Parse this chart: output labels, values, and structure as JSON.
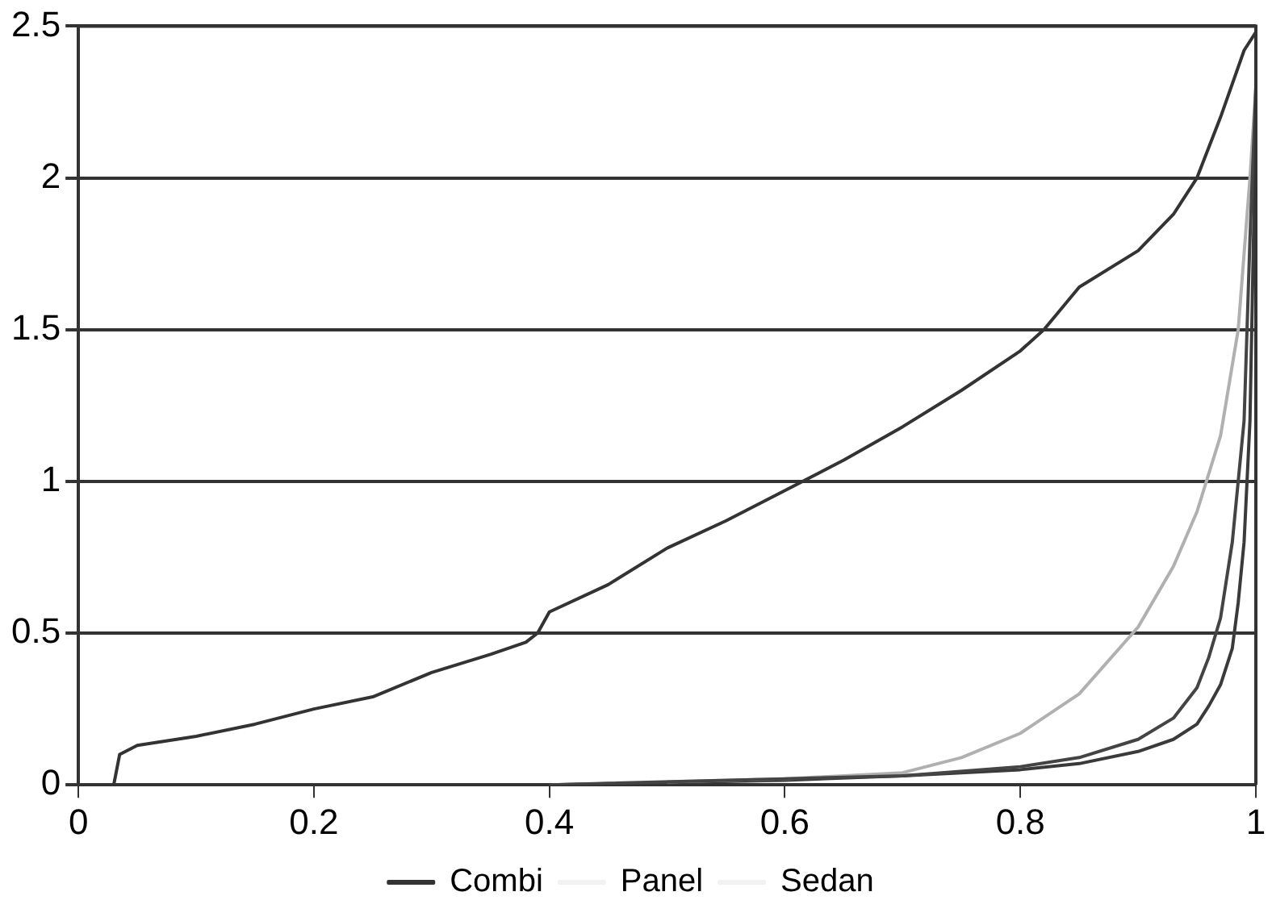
{
  "chart_data": {
    "type": "line",
    "xlim": [
      0,
      1
    ],
    "xticks": [
      0,
      0.2,
      0.4,
      0.6,
      0.8,
      1
    ],
    "ylim": [
      0,
      2.5
    ],
    "yticks": [
      0,
      0.5,
      1,
      1.5,
      2,
      2.5
    ],
    "grid": "y",
    "legend": "bottom",
    "marker": "none",
    "line_style": "solid",
    "series": [
      {
        "name": "Combi",
        "color": "#333333",
        "x": [
          0.03,
          0.035,
          0.05,
          0.1,
          0.15,
          0.2,
          0.25,
          0.3,
          0.35,
          0.38,
          0.39,
          0.4,
          0.45,
          0.5,
          0.55,
          0.6,
          0.65,
          0.7,
          0.75,
          0.8,
          0.82,
          0.85,
          0.9,
          0.93,
          0.95,
          0.97,
          0.99,
          1.0
        ],
        "values": [
          0,
          0.1,
          0.13,
          0.16,
          0.2,
          0.25,
          0.29,
          0.37,
          0.43,
          0.47,
          0.5,
          0.57,
          0.66,
          0.78,
          0.87,
          0.97,
          1.07,
          1.18,
          1.3,
          1.43,
          1.5,
          1.64,
          1.76,
          1.88,
          2.0,
          2.2,
          2.42,
          2.48
        ]
      },
      {
        "color": "#444444",
        "x": [
          0.4,
          0.6,
          0.7,
          0.8,
          0.85,
          0.9,
          0.93,
          0.95,
          0.96,
          0.97,
          0.98,
          0.99,
          0.995,
          1.0
        ],
        "values": [
          0,
          0.02,
          0.03,
          0.06,
          0.09,
          0.15,
          0.22,
          0.32,
          0.42,
          0.55,
          0.8,
          1.2,
          1.8,
          2.3
        ]
      },
      {
        "color": "#b0b0b0",
        "x": [
          0.5,
          0.6,
          0.7,
          0.75,
          0.8,
          0.85,
          0.9,
          0.93,
          0.95,
          0.97,
          0.985,
          0.995,
          1.0
        ],
        "values": [
          0.01,
          0.02,
          0.04,
          0.09,
          0.17,
          0.3,
          0.52,
          0.72,
          0.9,
          1.15,
          1.5,
          2.0,
          2.3
        ]
      },
      {
        "color": "#3a3a3a",
        "x": [
          0.4,
          0.6,
          0.7,
          0.8,
          0.85,
          0.9,
          0.93,
          0.95,
          0.96,
          0.97,
          0.98,
          0.985,
          0.99,
          0.995,
          1.0
        ],
        "values": [
          0,
          0.015,
          0.03,
          0.05,
          0.07,
          0.11,
          0.15,
          0.2,
          0.26,
          0.33,
          0.45,
          0.6,
          0.8,
          1.2,
          2.2
        ]
      },
      {
        "name": "Panel",
        "color": "#f2f2f2"
      },
      {
        "name": "Sedan",
        "color": "#f2f2f2"
      }
    ]
  }
}
